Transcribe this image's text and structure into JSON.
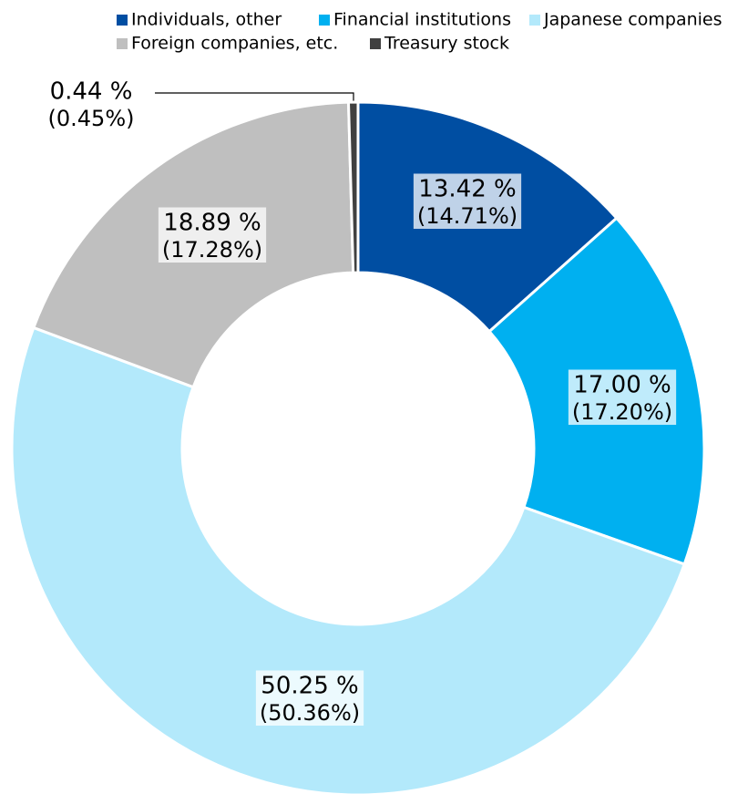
{
  "chart_data": {
    "type": "donut",
    "categories": [
      "Individuals, other",
      "Financial institutions",
      "Japanese companies",
      "Foreign companies, etc.",
      "Treasury stock"
    ],
    "values": [
      13.42,
      17.0,
      50.25,
      18.89,
      0.44
    ],
    "value_labels": [
      "13.42 %",
      "17.00 %",
      "50.25 %",
      "18.89 %",
      "0.44 %"
    ],
    "prior_value_labels": [
      "(14.71%)",
      "(17.20%)",
      "(50.36%)",
      "(17.28%)",
      "(0.45%)"
    ],
    "colors": [
      "#004ea2",
      "#00b0f0",
      "#b3e9fb",
      "#bfbfbf",
      "#404040"
    ],
    "legend": "top"
  }
}
